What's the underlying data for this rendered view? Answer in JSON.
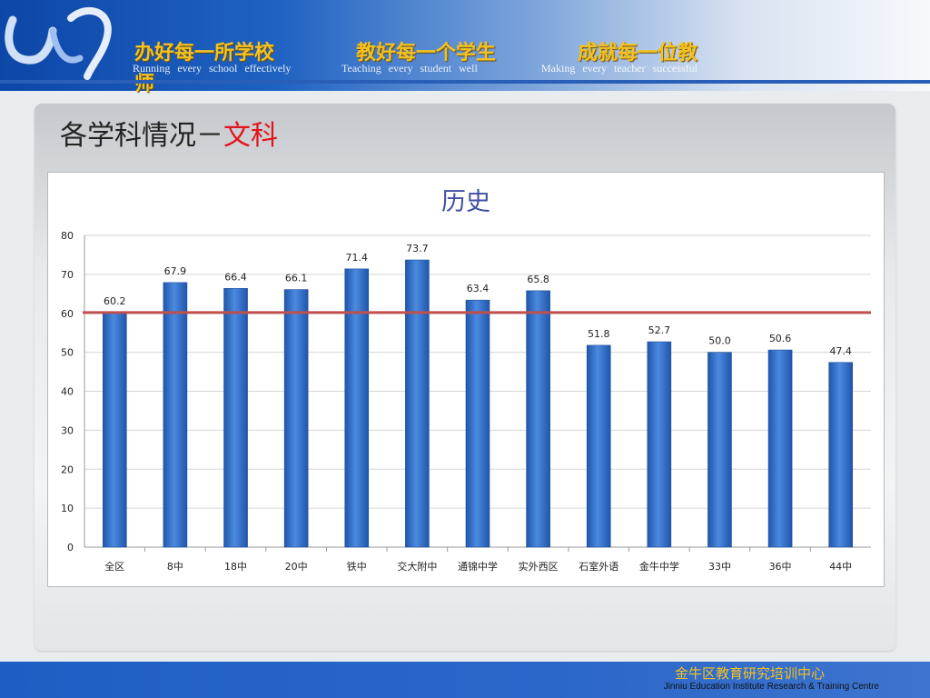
{
  "header": {
    "slogans": [
      "办好每一所学校",
      "教好每一个学生",
      "成就每一位教",
      "师"
    ],
    "slogans_en": [
      "Running every school effectively",
      "Teaching every student well",
      "Making every teacher successful"
    ]
  },
  "page": {
    "title_prefix": "各学科情况－",
    "title_accent": "文科"
  },
  "colors": {
    "bar": "#2e6fc9",
    "bar_edge": "#1f4e99",
    "reference_line": "#c0504d",
    "accent": "#e3141a",
    "slogan": "#f4c21f"
  },
  "chart_data": {
    "type": "bar",
    "title": "历史",
    "categories": [
      "全区",
      "8中",
      "18中",
      "20中",
      "铁中",
      "交大附中",
      "通锦中学",
      "实外西区",
      "石室外语",
      "金牛中学",
      "33中",
      "36中",
      "44中"
    ],
    "values": [
      60.2,
      67.9,
      66.4,
      66.1,
      71.4,
      73.7,
      63.4,
      65.8,
      51.8,
      52.7,
      50.0,
      50.6,
      47.4
    ],
    "data_labels": [
      "60.2",
      "67.9",
      "66.4",
      "66.1",
      "71.4",
      "73.7",
      "63.4",
      "65.8",
      "51.8",
      "52.7",
      "50.0",
      "50.6",
      "47.4"
    ],
    "reference_line": 60.2,
    "ylim": [
      0,
      80
    ],
    "yticks": [
      0,
      10,
      20,
      30,
      40,
      50,
      60,
      70,
      80
    ],
    "xlabel": "",
    "ylabel": "",
    "grid": true,
    "legend": "none"
  },
  "footer": {
    "org_cn": "金牛区教育研究培训中心",
    "org_en": "Jinniu Education Institute Research & Training Centre"
  }
}
